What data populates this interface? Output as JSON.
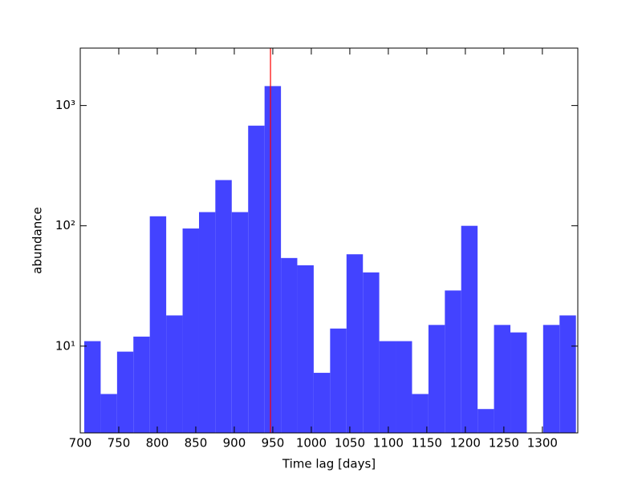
{
  "chart_data": {
    "type": "histogram",
    "x_label": "Time lag [days]",
    "y_label": "abundance",
    "bins": [
      705.2,
      726.5,
      747.8,
      769.0,
      790.3,
      811.6,
      832.9,
      854.2,
      875.4,
      896.7,
      918.0,
      939.3,
      960.6,
      981.8,
      1003.1,
      1024.4,
      1045.7,
      1067.0,
      1088.2,
      1109.5,
      1130.8,
      1152.1,
      1173.4,
      1194.6,
      1215.9,
      1237.2,
      1258.5,
      1279.8,
      1301.0,
      1322.3,
      1343.6
    ],
    "values": [
      11,
      4,
      9,
      12,
      120,
      18,
      95,
      130,
      240,
      130,
      680,
      1450,
      54,
      47,
      6,
      14,
      58,
      41,
      11,
      11,
      4,
      15,
      29,
      100,
      3,
      15,
      13,
      0,
      15,
      18
    ],
    "color": "#4343ff",
    "vline": 947,
    "vline_color": "#ff0000",
    "xlim": [
      700,
      1346
    ],
    "xticks": [
      700,
      750,
      800,
      850,
      900,
      950,
      1000,
      1050,
      1100,
      1150,
      1200,
      1250,
      1300
    ],
    "ylim": [
      1.9,
      3000
    ],
    "y_log": true,
    "yticks": [
      {
        "value": 10,
        "label": "10¹"
      },
      {
        "value": 100,
        "label": "10²"
      },
      {
        "value": 1000,
        "label": "10³"
      }
    ]
  }
}
